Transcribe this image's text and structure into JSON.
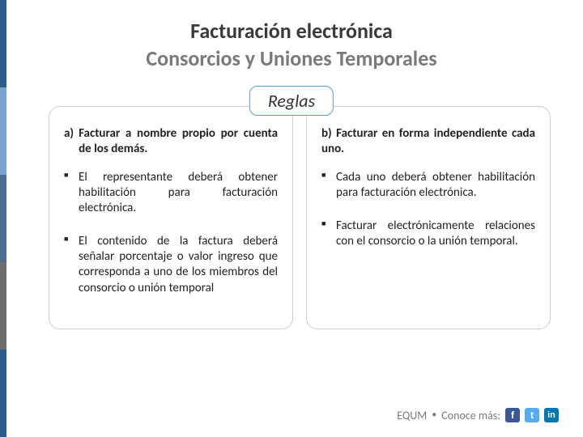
{
  "sidebar_colors": [
    "#2e5c8a",
    "#7aa6cc",
    "#4f6d8f",
    "#6e6e6e",
    "#2e5c8a"
  ],
  "title": {
    "line1": "Facturación electrónica",
    "line2": "Consorcios y Uniones Temporales"
  },
  "reglas_label": "Reglas",
  "columns": {
    "left": {
      "letter": "a)",
      "header": "Facturar a nombre propio por cuenta de los demás.",
      "bullets": [
        "El representante deberá obtener habilitación para facturación electrónica.",
        "El contenido de la factura deberá señalar porcentaje o valor ingreso que corresponda a uno de los miembros del consorcio o unión temporal"
      ]
    },
    "right": {
      "header": "b) Facturar en forma independiente cada uno.",
      "bullets": [
        "Cada uno deberá obtener habilitación para facturación electrónica.",
        "Facturar electrónicamente relaciones con el consorcio o la unión temporal."
      ]
    }
  },
  "footer": {
    "brand": "EQUM",
    "tagline": "Conoce más:"
  },
  "social": {
    "fb": "f",
    "tw": "t",
    "li": "in"
  },
  "colors": {
    "border_blue": "#5b9bd5",
    "border_gray": "#cfcfcf",
    "text_dark": "#3a3a3a",
    "text_gray": "#7a7a7a"
  }
}
